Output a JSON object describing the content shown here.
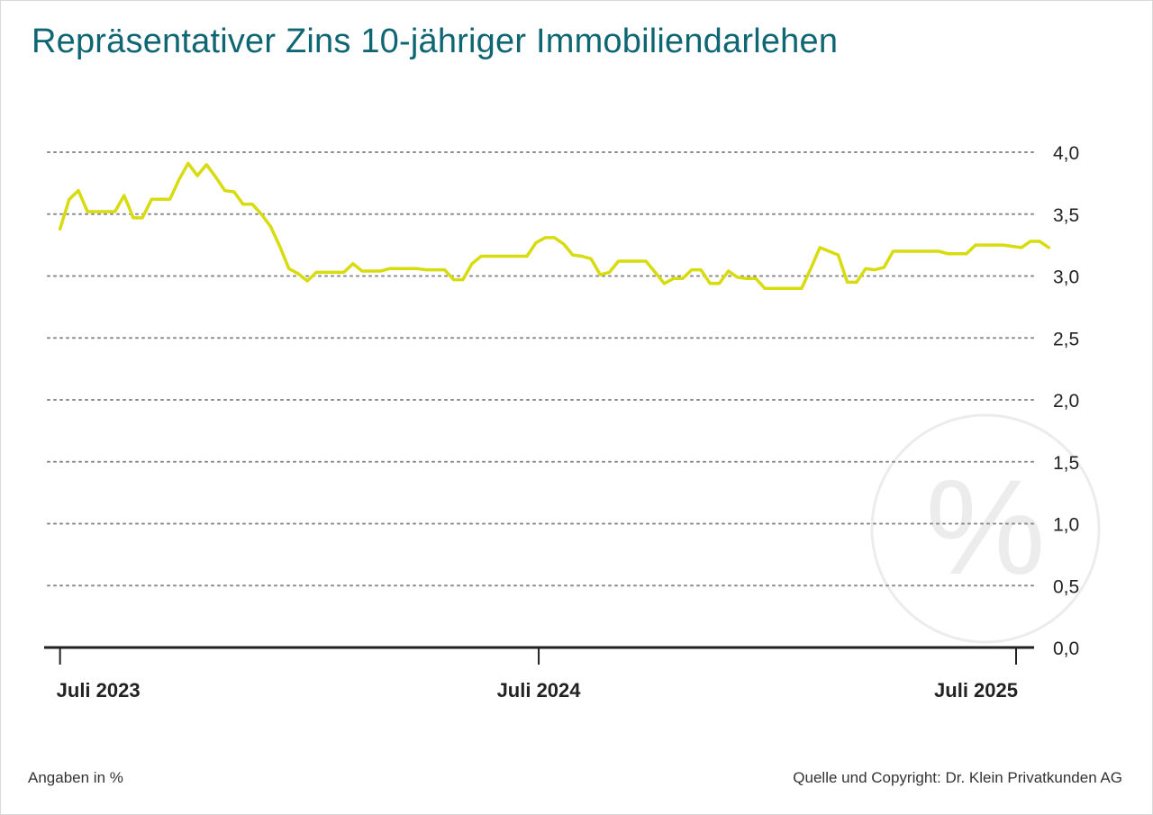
{
  "header": {
    "title": "Repräsentativer Zins 10-jähriger Immobiliendarlehen"
  },
  "footer": {
    "note": "Angaben in %",
    "source": "Quelle und Copyright: Dr. Klein Privatkunden AG"
  },
  "watermark_icon": "percent-icon",
  "colors": {
    "line": "#d7dc0f",
    "title": "#0f6673",
    "grid": "#8a8a8a",
    "axis": "#222222",
    "watermark": "#ececec"
  },
  "chart_data": {
    "type": "line",
    "title": "Repräsentativer Zins 10-jähriger Immobiliendarlehen",
    "xlabel": "",
    "ylabel": "",
    "ylim": [
      0,
      4
    ],
    "yticks": [
      0,
      0.5,
      1,
      1.5,
      2,
      2.5,
      3,
      3.5,
      4
    ],
    "ytick_labels": [
      "0,0",
      "0,5",
      "1,0",
      "1,5",
      "2,0",
      "2,5",
      "3,0",
      "3,5",
      "4,0"
    ],
    "y_axis_position": "right",
    "grid": "horizontal dotted",
    "xticks": [
      "2023-07",
      "2024-07",
      "2025-07"
    ],
    "xtick_labels": [
      "Juli 2023",
      "Juli 2024",
      "Juli 2025"
    ],
    "xlim": [
      "2023-07-01",
      "2025-07-01"
    ],
    "series": [
      {
        "values": [
          [
            "2023-07-01",
            3.38
          ],
          [
            "2023-07-08",
            3.62
          ],
          [
            "2023-07-15",
            3.69
          ],
          [
            "2023-07-22",
            3.52
          ],
          [
            "2023-07-29",
            3.52
          ],
          [
            "2023-08-05",
            3.52
          ],
          [
            "2023-08-12",
            3.52
          ],
          [
            "2023-08-19",
            3.65
          ],
          [
            "2023-08-26",
            3.47
          ],
          [
            "2023-09-02",
            3.47
          ],
          [
            "2023-09-09",
            3.62
          ],
          [
            "2023-09-16",
            3.62
          ],
          [
            "2023-09-23",
            3.62
          ],
          [
            "2023-09-30",
            3.78
          ],
          [
            "2023-10-07",
            3.91
          ],
          [
            "2023-10-14",
            3.81
          ],
          [
            "2023-10-21",
            3.9
          ],
          [
            "2023-10-28",
            3.8
          ],
          [
            "2023-11-04",
            3.69
          ],
          [
            "2023-11-11",
            3.68
          ],
          [
            "2023-11-18",
            3.58
          ],
          [
            "2023-11-25",
            3.58
          ],
          [
            "2023-12-02",
            3.5
          ],
          [
            "2023-12-09",
            3.4
          ],
          [
            "2023-12-16",
            3.24
          ],
          [
            "2023-12-23",
            3.06
          ],
          [
            "2023-12-30",
            3.02
          ],
          [
            "2024-01-06",
            2.96
          ],
          [
            "2024-01-13",
            3.03
          ],
          [
            "2024-01-20",
            3.03
          ],
          [
            "2024-01-27",
            3.03
          ],
          [
            "2024-02-03",
            3.03
          ],
          [
            "2024-02-10",
            3.1
          ],
          [
            "2024-02-17",
            3.04
          ],
          [
            "2024-02-24",
            3.04
          ],
          [
            "2024-03-02",
            3.04
          ],
          [
            "2024-03-09",
            3.06
          ],
          [
            "2024-03-16",
            3.06
          ],
          [
            "2024-03-23",
            3.06
          ],
          [
            "2024-03-30",
            3.06
          ],
          [
            "2024-04-06",
            3.05
          ],
          [
            "2024-04-13",
            3.05
          ],
          [
            "2024-04-20",
            3.05
          ],
          [
            "2024-04-27",
            2.97
          ],
          [
            "2024-05-04",
            2.97
          ],
          [
            "2024-05-11",
            3.1
          ],
          [
            "2024-05-18",
            3.16
          ],
          [
            "2024-05-25",
            3.16
          ],
          [
            "2024-06-01",
            3.16
          ],
          [
            "2024-06-08",
            3.16
          ],
          [
            "2024-06-15",
            3.16
          ],
          [
            "2024-06-22",
            3.16
          ],
          [
            "2024-06-29",
            3.27
          ],
          [
            "2024-07-06",
            3.31
          ],
          [
            "2024-07-13",
            3.31
          ],
          [
            "2024-07-20",
            3.26
          ],
          [
            "2024-07-27",
            3.17
          ],
          [
            "2024-08-03",
            3.16
          ],
          [
            "2024-08-10",
            3.14
          ],
          [
            "2024-08-17",
            3.01
          ],
          [
            "2024-08-24",
            3.03
          ],
          [
            "2024-08-31",
            3.12
          ],
          [
            "2024-09-07",
            3.12
          ],
          [
            "2024-09-14",
            3.12
          ],
          [
            "2024-09-21",
            3.12
          ],
          [
            "2024-09-28",
            3.03
          ],
          [
            "2024-10-05",
            2.94
          ],
          [
            "2024-10-12",
            2.98
          ],
          [
            "2024-10-19",
            2.98
          ],
          [
            "2024-10-26",
            3.05
          ],
          [
            "2024-11-02",
            3.05
          ],
          [
            "2024-11-09",
            2.94
          ],
          [
            "2024-11-16",
            2.94
          ],
          [
            "2024-11-23",
            3.04
          ],
          [
            "2024-11-30",
            2.99
          ],
          [
            "2024-12-07",
            2.98
          ],
          [
            "2024-12-14",
            2.98
          ],
          [
            "2024-12-21",
            2.9
          ],
          [
            "2024-12-28",
            2.9
          ],
          [
            "2025-01-04",
            2.9
          ],
          [
            "2025-01-11",
            2.9
          ],
          [
            "2025-01-18",
            2.9
          ],
          [
            "2025-01-25",
            3.06
          ],
          [
            "2025-02-01",
            3.23
          ],
          [
            "2025-02-08",
            3.2
          ],
          [
            "2025-02-15",
            3.17
          ],
          [
            "2025-02-22",
            2.95
          ],
          [
            "2025-03-01",
            2.95
          ],
          [
            "2025-03-08",
            3.06
          ],
          [
            "2025-03-15",
            3.05
          ],
          [
            "2025-03-22",
            3.07
          ],
          [
            "2025-03-29",
            3.2
          ],
          [
            "2025-04-05",
            3.2
          ],
          [
            "2025-04-12",
            3.2
          ],
          [
            "2025-04-19",
            3.2
          ],
          [
            "2025-04-26",
            3.2
          ],
          [
            "2025-05-03",
            3.2
          ],
          [
            "2025-05-10",
            3.18
          ],
          [
            "2025-05-17",
            3.18
          ],
          [
            "2025-05-24",
            3.18
          ],
          [
            "2025-05-31",
            3.25
          ],
          [
            "2025-06-07",
            3.25
          ],
          [
            "2025-06-14",
            3.25
          ],
          [
            "2025-06-21",
            3.25
          ],
          [
            "2025-06-28",
            3.24
          ],
          [
            "2025-07-05",
            3.23
          ],
          [
            "2025-07-12",
            3.28
          ],
          [
            "2025-07-19",
            3.28
          ],
          [
            "2025-07-26",
            3.23
          ]
        ]
      }
    ]
  }
}
